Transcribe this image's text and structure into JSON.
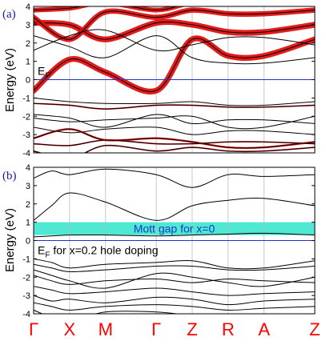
{
  "chart_data": [
    {
      "type": "line",
      "panel_label": "(a)",
      "ylabel": "Energy (eV)",
      "ylim": [
        -4,
        4
      ],
      "yticks": [
        -4,
        -3,
        -2,
        -1,
        0,
        1,
        2,
        3,
        4
      ],
      "kpoints": [
        "Γ",
        "X",
        "M",
        "Γ",
        "Z",
        "R",
        "A",
        "Z"
      ],
      "kpoint_positions": [
        0,
        1,
        2,
        3.41,
        4.41,
        5.41,
        6.41,
        7.82
      ],
      "fermi_level": 0,
      "fermi_label": "E",
      "fermi_label_sub": "F",
      "colors": {
        "bands": "#000000",
        "fermi": "#2233cc",
        "fatband": "#e01010"
      },
      "series": [
        {
          "x": [
            0,
            1,
            2,
            3.41,
            4.41,
            5.41,
            6.41,
            7.82
          ],
          "y": [
            -0.6,
            1.1,
            0.4,
            -0.6,
            2.2,
            1.3,
            1.3,
            2.2
          ],
          "weight": 0.9
        },
        {
          "x": [
            0,
            1,
            2,
            3.41,
            4.41,
            5.41,
            6.41,
            7.82
          ],
          "y": [
            3.1,
            3.0,
            2.2,
            3.1,
            3.0,
            2.6,
            2.6,
            3.0
          ],
          "weight": 0.9
        },
        {
          "x": [
            0,
            1,
            2,
            3.41,
            4.41,
            5.41,
            6.41,
            7.82
          ],
          "y": [
            3.4,
            2.2,
            3.7,
            3.4,
            3.8,
            3.6,
            3.6,
            3.8
          ],
          "weight": 0.8
        },
        {
          "x": [
            0,
            1,
            2,
            3.41,
            4.41,
            5.41,
            6.41,
            7.82
          ],
          "y": [
            3.8,
            3.9,
            4.2,
            3.8,
            4.2,
            4.2,
            4.2,
            4.2
          ],
          "weight": 0.7
        },
        {
          "x": [
            0,
            1,
            2,
            3.41,
            4.41,
            5.41,
            6.41,
            7.82
          ],
          "y": [
            1.6,
            2.4,
            2.7,
            1.6,
            1.9,
            2.3,
            2.3,
            1.9
          ],
          "weight": 0.0
        },
        {
          "x": [
            0,
            1,
            2,
            3.41,
            4.41,
            5.41,
            6.41,
            7.82
          ],
          "y": [
            2.4,
            1.8,
            1.2,
            2.4,
            1.2,
            0.9,
            0.9,
            1.2
          ],
          "weight": 0.0
        },
        {
          "x": [
            0,
            1,
            2,
            3.41,
            4.41,
            5.41,
            6.41,
            7.82
          ],
          "y": [
            -1.0,
            -1.2,
            -1.3,
            -1.3,
            -1.2,
            -1.4,
            -1.4,
            -1.2
          ],
          "weight": 0.0
        },
        {
          "x": [
            0,
            1,
            2,
            3.41,
            4.41,
            5.41,
            6.41,
            7.82
          ],
          "y": [
            -1.3,
            -1.4,
            -1.6,
            -1.4,
            -1.4,
            -1.5,
            -1.5,
            -1.4
          ],
          "weight": 0.1
        },
        {
          "x": [
            0,
            1,
            2,
            3.41,
            4.41,
            5.41,
            6.41,
            7.82
          ],
          "y": [
            -1.9,
            -2.1,
            -2.6,
            -1.9,
            -2.4,
            -2.2,
            -2.2,
            -2.4
          ],
          "weight": 0.0
        },
        {
          "x": [
            0,
            1,
            2,
            3.41,
            4.41,
            5.41,
            6.41,
            7.82
          ],
          "y": [
            -2.1,
            -2.3,
            -2.2,
            -2.1,
            -2.0,
            -2.6,
            -2.6,
            -2.0
          ],
          "weight": 0.0
        },
        {
          "x": [
            0,
            1,
            2,
            3.41,
            4.41,
            5.41,
            6.41,
            7.82
          ],
          "y": [
            -2.6,
            -2.9,
            -2.7,
            -2.6,
            -3.0,
            -2.8,
            -2.8,
            -3.0
          ],
          "weight": 0.0
        },
        {
          "x": [
            0,
            1,
            2,
            3.41,
            4.41,
            5.41,
            6.41,
            7.82
          ],
          "y": [
            -3.2,
            -2.7,
            -3.3,
            -3.2,
            -3.4,
            -3.7,
            -3.7,
            -3.4
          ],
          "weight": 0.2
        },
        {
          "x": [
            0,
            1,
            2,
            3.41,
            4.41,
            5.41,
            6.41,
            7.82
          ],
          "y": [
            -3.5,
            -3.6,
            -3.3,
            -3.5,
            -3.5,
            -3.4,
            -3.4,
            -3.5
          ],
          "weight": 0.1
        },
        {
          "x": [
            0,
            1,
            2,
            3.41,
            4.41,
            5.41,
            6.41,
            7.82
          ],
          "y": [
            -3.9,
            -4.3,
            -3.6,
            -3.9,
            -3.7,
            -3.9,
            -3.9,
            -3.7
          ],
          "weight": 0.1
        }
      ]
    },
    {
      "type": "line",
      "panel_label": "(b)",
      "ylabel": "Energy (eV)",
      "ylim": [
        -4,
        4
      ],
      "yticks": [
        -4,
        -3,
        -2,
        -1,
        0,
        1,
        2,
        3,
        4
      ],
      "kpoints": [
        "Γ",
        "X",
        "M",
        "Γ",
        "Z",
        "R",
        "A",
        "Z"
      ],
      "kpoint_positions": [
        0,
        1,
        2,
        3.41,
        4.41,
        5.41,
        6.41,
        7.82
      ],
      "fermi_level": 0,
      "fermi_label": "E",
      "fermi_label_sub": "F",
      "fermi_annotation": " for x=0.2 hole doping",
      "gap_band": {
        "from": 0.3,
        "to": 1.0,
        "label": "Mott gap for x=0",
        "color": "#4fe8d2",
        "label_color": "#1a3acc"
      },
      "colors": {
        "bands": "#000000",
        "fermi": "#2233cc"
      },
      "series": [
        {
          "x": [
            0,
            0.5,
            1,
            2,
            3.41,
            4.41,
            5.41,
            6.41,
            7.82
          ],
          "y": [
            1.1,
            1.9,
            2.6,
            2.1,
            1.1,
            1.9,
            2.2,
            2.3,
            1.9
          ]
        },
        {
          "x": [
            0,
            0.5,
            1,
            2,
            3.41,
            4.41,
            5.41,
            6.41,
            7.82
          ],
          "y": [
            3.4,
            3.8,
            3.6,
            3.9,
            3.6,
            2.9,
            3.6,
            3.5,
            3.6
          ]
        },
        {
          "x": [
            0,
            0.5,
            1,
            2,
            3.41,
            4.41,
            5.41,
            6.41,
            7.82
          ],
          "y": [
            4.3,
            4.2,
            4.4,
            4.3,
            4.2,
            4.3,
            4.3,
            4.3,
            4.3
          ]
        },
        {
          "x": [
            0,
            0.5,
            1,
            2,
            3.41,
            4.41,
            5.41,
            6.41,
            7.82
          ],
          "y": [
            0.2,
            0.25,
            0.3,
            0.3,
            0.25,
            0.3,
            0.35,
            0.4,
            0.3
          ]
        },
        {
          "x": [
            0,
            0.5,
            1,
            2,
            3.41,
            4.41,
            5.41,
            6.41,
            7.82
          ],
          "y": [
            -1.0,
            -1.2,
            -1.5,
            -1.3,
            -1.2,
            -1.1,
            -1.5,
            -1.5,
            -1.1
          ]
        },
        {
          "x": [
            0,
            0.5,
            1,
            2,
            3.41,
            4.41,
            5.41,
            6.41,
            7.82
          ],
          "y": [
            -1.3,
            -1.5,
            -1.7,
            -1.6,
            -1.4,
            -1.4,
            -1.6,
            -1.6,
            -1.4
          ]
        },
        {
          "x": [
            0,
            0.5,
            1,
            2,
            3.41,
            4.41,
            5.41,
            6.41,
            7.82
          ],
          "y": [
            -1.6,
            -1.9,
            -2.2,
            -2.6,
            -1.8,
            -2.0,
            -2.3,
            -2.5,
            -2.0
          ]
        },
        {
          "x": [
            0,
            0.5,
            1,
            2,
            3.41,
            4.41,
            5.41,
            6.41,
            7.82
          ],
          "y": [
            -1.9,
            -2.2,
            -2.4,
            -2.2,
            -2.1,
            -2.3,
            -2.1,
            -2.2,
            -2.3
          ]
        },
        {
          "x": [
            0,
            0.5,
            1,
            2,
            3.41,
            4.41,
            5.41,
            6.41,
            7.82
          ],
          "y": [
            -2.5,
            -2.7,
            -2.9,
            -2.8,
            -2.6,
            -2.8,
            -3.0,
            -2.9,
            -2.8
          ]
        },
        {
          "x": [
            0,
            0.5,
            1,
            2,
            3.41,
            4.41,
            5.41,
            6.41,
            7.82
          ],
          "y": [
            -3.0,
            -3.3,
            -3.2,
            -3.4,
            -3.1,
            -3.2,
            -3.5,
            -3.3,
            -3.2
          ]
        },
        {
          "x": [
            0,
            0.5,
            1,
            2,
            3.41,
            4.41,
            5.41,
            6.41,
            7.82
          ],
          "y": [
            -3.4,
            -3.6,
            -3.8,
            -3.6,
            -3.5,
            -3.6,
            -3.8,
            -3.7,
            -3.6
          ]
        },
        {
          "x": [
            0,
            0.5,
            1,
            2,
            3.41,
            4.41,
            5.41,
            6.41,
            7.82
          ],
          "y": [
            -3.8,
            -4.2,
            -4.4,
            -3.9,
            -3.9,
            -4.1,
            -4.3,
            -4.2,
            -4.1
          ]
        }
      ]
    }
  ]
}
